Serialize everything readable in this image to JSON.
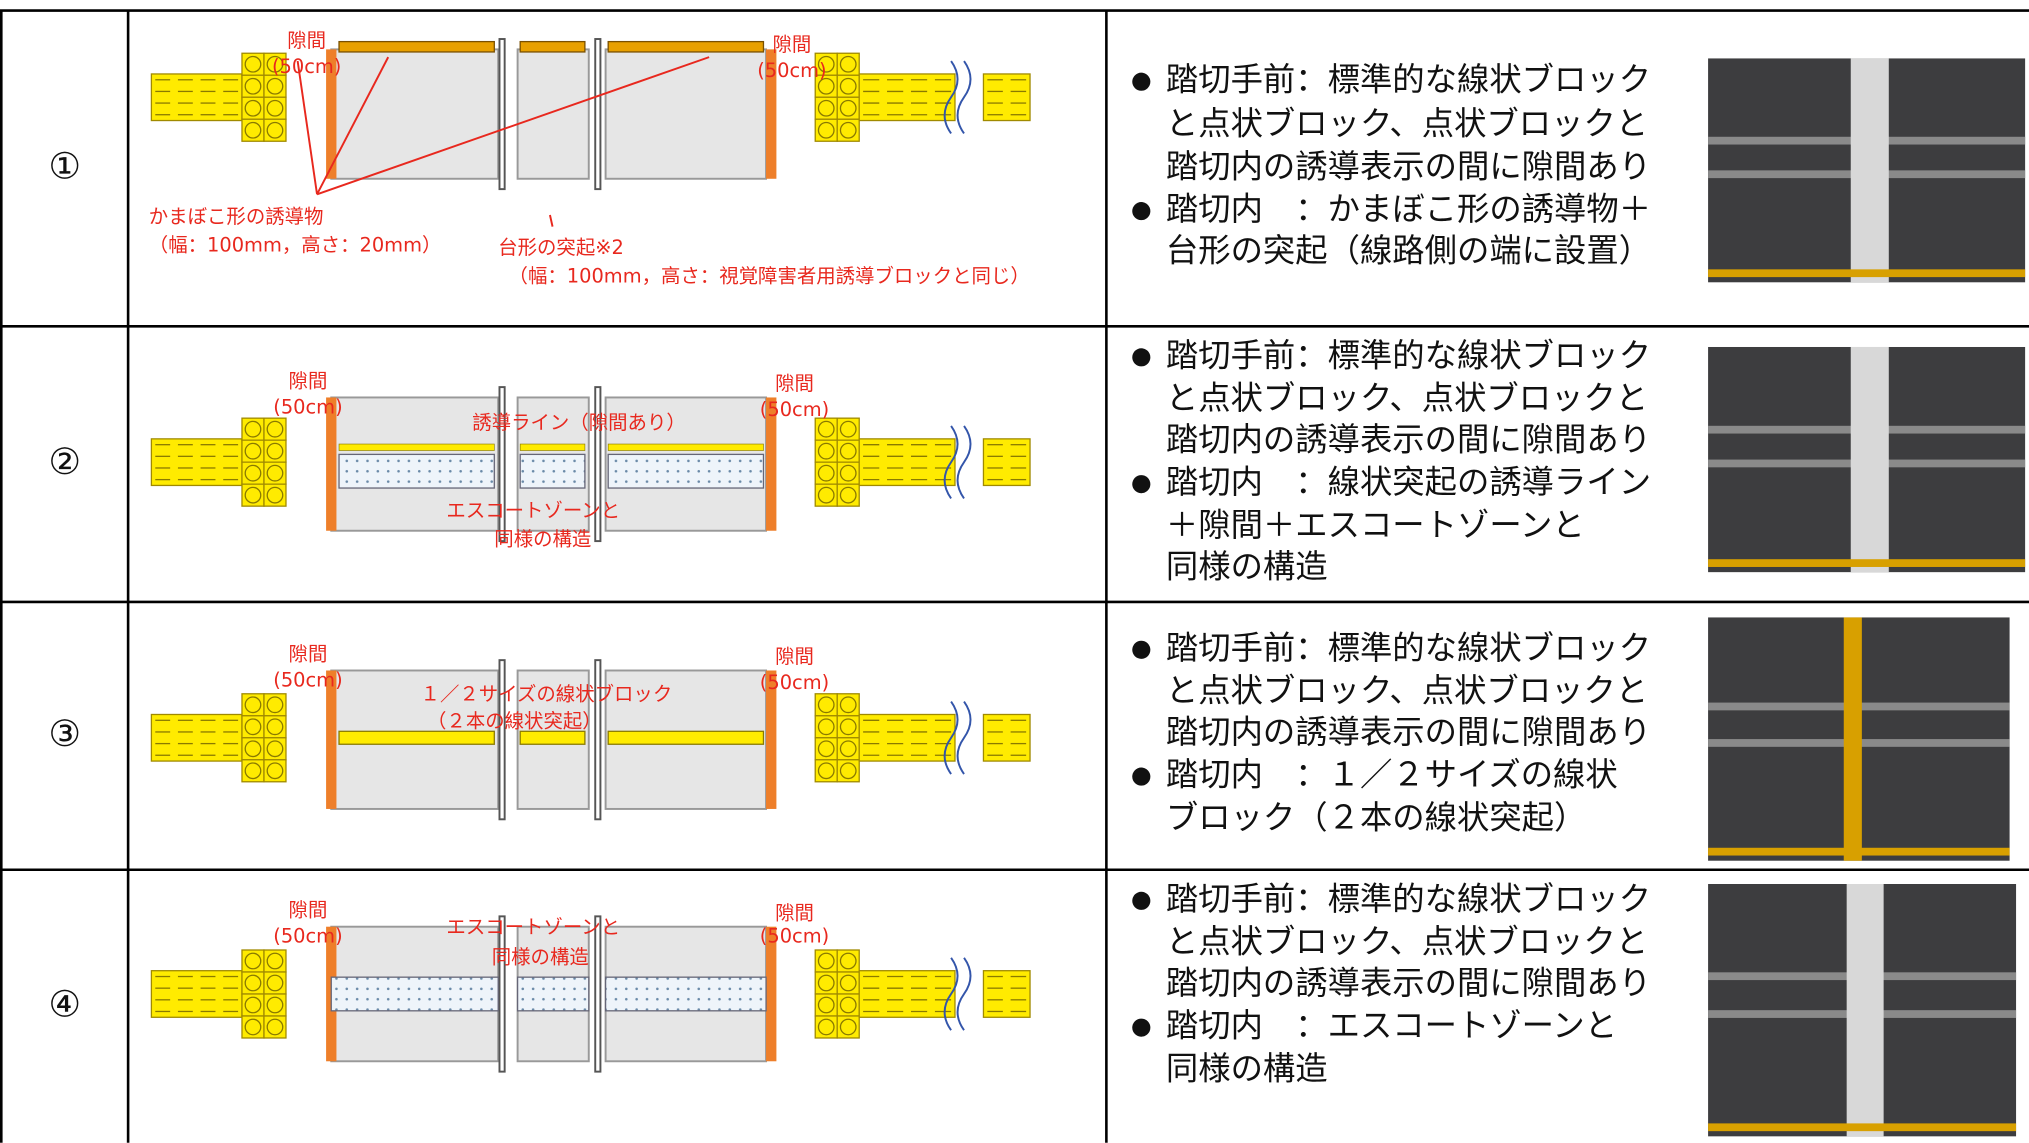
{
  "rows": [
    {
      "number": "①",
      "gap_left": [
        "隙間",
        "(50cm)"
      ],
      "gap_right": [
        "隙間",
        "(50cm)"
      ],
      "notes": [
        "かまぼこ形の誘導物",
        "（幅：100mm，高さ：20mm）",
        "台形の突起※2",
        "（幅：100mm，高さ：視覚障害者用誘導ブロックと同じ）"
      ],
      "description": [
        "踏切手前：標準的な線状ブロック",
        "と点状ブロック、点状ブロックと",
        "踏切内の誘導表示の間に隙間あり",
        "踏切内　：かまぼこ形の誘導物＋",
        "台形の突起（線路側の端に設置）"
      ]
    },
    {
      "number": "②",
      "gap_left": [
        "隙間",
        "(50cm)"
      ],
      "gap_right": [
        "隙間",
        "(50cm)"
      ],
      "notes": [
        "誘導ライン（隙間あり）",
        "エスコートゾーンと",
        "同様の構造"
      ],
      "description": [
        "踏切手前：標準的な線状ブロック",
        "と点状ブロック、点状ブロックと",
        "踏切内の誘導表示の間に隙間あり",
        "踏切内　：線状突起の誘導ライン",
        "＋隙間＋エスコートゾーンと",
        "同様の構造"
      ]
    },
    {
      "number": "③",
      "gap_left": [
        "隙間",
        "(50cm)"
      ],
      "gap_right": [
        "隙間",
        "(50cm)"
      ],
      "notes": [
        "１／２サイズの線状ブロック",
        "（２本の線状突起）"
      ],
      "description": [
        "踏切手前：標準的な線状ブロック",
        "と点状ブロック、点状ブロックと",
        "踏切内の誘導表示の間に隙間あり",
        "踏切内　：１／２サイズの線状",
        "ブロック（２本の線状突起）"
      ]
    },
    {
      "number": "④",
      "gap_left": [
        "隙間",
        "(50cm)"
      ],
      "gap_right": [
        "隙間",
        "(50cm)"
      ],
      "notes": [
        "エスコートゾーンと",
        "同様の構造"
      ],
      "description": [
        "踏切手前：標準的な線状ブロック",
        "と点状ブロック、点状ブロックと",
        "踏切内の誘導表示の間に隙間あり",
        "踏切内　：エスコートゾーンと",
        "同様の構造"
      ]
    }
  ]
}
